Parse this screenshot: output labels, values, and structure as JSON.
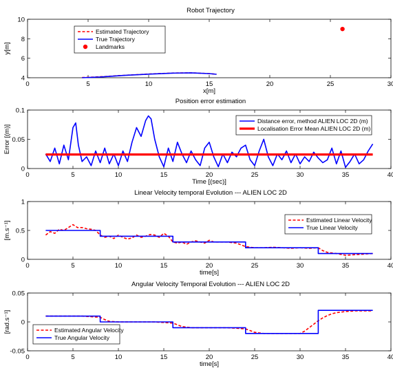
{
  "colors": {
    "red": "#ff0000",
    "blue": "#0000ff",
    "axis": "#000000"
  },
  "chart_data": [
    {
      "type": "line",
      "title": "Robot Trajectory",
      "xlabel": "x[m]",
      "ylabel": "y[m]",
      "xlim": [
        0,
        30
      ],
      "ylim": [
        4,
        10
      ],
      "xticks": [
        "0",
        "5",
        "10",
        "15",
        "20",
        "25",
        "30"
      ],
      "yticks": [
        "4",
        "6",
        "8",
        "10"
      ],
      "legend": {
        "position": "top-left",
        "entries": [
          "Estimated Trajectory",
          "True Trajectory",
          "Landmarks"
        ]
      },
      "series": [
        {
          "name": "Estimated Trajectory",
          "style": "dashed",
          "color": "#ff0000",
          "x": [
            4.5,
            6,
            8,
            10,
            12,
            13.5,
            15,
            15.6
          ],
          "y": [
            4.02,
            4.1,
            4.25,
            4.38,
            4.48,
            4.5,
            4.42,
            4.35
          ]
        },
        {
          "name": "True Trajectory",
          "style": "solid",
          "color": "#0000ff",
          "x": [
            4.5,
            6,
            8,
            10,
            12,
            13.5,
            15,
            15.6
          ],
          "y": [
            4.0,
            4.08,
            4.24,
            4.37,
            4.47,
            4.5,
            4.42,
            4.35
          ]
        },
        {
          "name": "Landmarks",
          "style": "marker",
          "color": "#ff0000",
          "x": [
            26
          ],
          "y": [
            9.0
          ]
        }
      ]
    },
    {
      "type": "line",
      "title": "Position error estimation",
      "xlabel": "Time [(sec)]",
      "ylabel": "Error [(m)]",
      "xlim": [
        0,
        40
      ],
      "ylim": [
        0,
        0.1
      ],
      "xticks": [
        "0",
        "5",
        "10",
        "15",
        "20",
        "25",
        "30",
        "35",
        "40"
      ],
      "yticks": [
        "0",
        "0.05",
        "0.1"
      ],
      "legend": {
        "position": "top-right",
        "entries": [
          "Distance error, method ALIEN LOC 2D (m)",
          "Localisation Error Mean ALIEN LOC 2D (m)"
        ]
      },
      "series": [
        {
          "name": "Distance error, method ALIEN LOC 2D (m)",
          "style": "solid",
          "color": "#0000ff",
          "x": [
            2,
            2.5,
            3,
            3.5,
            4,
            4.5,
            5,
            5.3,
            5.6,
            6,
            6.5,
            7,
            7.5,
            8,
            8.5,
            9,
            9.5,
            10,
            10.5,
            11,
            11.5,
            12,
            12.5,
            13,
            13.3,
            13.6,
            14,
            14.5,
            15,
            15.5,
            16,
            16.5,
            17,
            17.5,
            18,
            18.5,
            19,
            19.5,
            20,
            20.5,
            21,
            21.5,
            22,
            22.5,
            23,
            23.5,
            24,
            24.5,
            25,
            25.5,
            26,
            26.5,
            27,
            27.5,
            28,
            28.5,
            29,
            29.5,
            30,
            30.5,
            31,
            31.5,
            32,
            32.5,
            33,
            33.5,
            34,
            34.5,
            35,
            35.5,
            36,
            36.5,
            37,
            37.5,
            38
          ],
          "y": [
            0.025,
            0.012,
            0.035,
            0.008,
            0.04,
            0.015,
            0.07,
            0.078,
            0.04,
            0.012,
            0.02,
            0.005,
            0.03,
            0.01,
            0.035,
            0.008,
            0.025,
            0.005,
            0.03,
            0.012,
            0.045,
            0.07,
            0.055,
            0.082,
            0.09,
            0.085,
            0.05,
            0.02,
            0.003,
            0.035,
            0.012,
            0.045,
            0.025,
            0.01,
            0.03,
            0.015,
            0.005,
            0.035,
            0.045,
            0.02,
            0.003,
            0.025,
            0.01,
            0.028,
            0.02,
            0.035,
            0.04,
            0.015,
            0.005,
            0.03,
            0.05,
            0.02,
            0.005,
            0.025,
            0.015,
            0.03,
            0.01,
            0.025,
            0.008,
            0.02,
            0.012,
            0.028,
            0.018,
            0.01,
            0.015,
            0.035,
            0.008,
            0.03,
            0.002,
            0.012,
            0.025,
            0.008,
            0.015,
            0.03,
            0.042
          ]
        },
        {
          "name": "Localisation Error Mean ALIEN LOC 2D (m)",
          "style": "solid-thick",
          "color": "#ff0000",
          "x": [
            2,
            38
          ],
          "y": [
            0.024,
            0.024
          ]
        }
      ]
    },
    {
      "type": "line",
      "title": "Linear Velocity temporal Evolution --- ALIEN LOC 2D",
      "xlabel": "time[s]",
      "ylabel": "[m.s⁻¹]",
      "xlim": [
        0,
        40
      ],
      "ylim": [
        0,
        1
      ],
      "xticks": [
        "0",
        "5",
        "10",
        "15",
        "20",
        "25",
        "30",
        "35",
        "40"
      ],
      "yticks": [
        "0",
        "0.5",
        "1"
      ],
      "legend": {
        "position": "top-right",
        "entries": [
          "Estimated Linear Velocity",
          "True Linear Velocity"
        ]
      },
      "series": [
        {
          "name": "Estimated Linear Velocity",
          "style": "dashed",
          "color": "#ff0000",
          "x": [
            2,
            2.5,
            3,
            3.5,
            4,
            4.5,
            5,
            5.5,
            6,
            6.5,
            7,
            7.5,
            8,
            8.5,
            9,
            9.5,
            10,
            10.5,
            11,
            11.5,
            12,
            12.5,
            13,
            13.5,
            14,
            14.5,
            15,
            15.5,
            16,
            16.5,
            17,
            17.5,
            18,
            18.5,
            19,
            19.5,
            20,
            20.5,
            21,
            22,
            23,
            24,
            25,
            26,
            27,
            28,
            29,
            30,
            31,
            32,
            32.5,
            33,
            33.5,
            34,
            35,
            36,
            37,
            38
          ],
          "y": [
            0.42,
            0.48,
            0.45,
            0.52,
            0.5,
            0.55,
            0.6,
            0.55,
            0.55,
            0.53,
            0.52,
            0.5,
            0.42,
            0.38,
            0.4,
            0.36,
            0.42,
            0.38,
            0.35,
            0.37,
            0.42,
            0.38,
            0.4,
            0.43,
            0.42,
            0.38,
            0.45,
            0.4,
            0.3,
            0.28,
            0.3,
            0.26,
            0.3,
            0.32,
            0.3,
            0.28,
            0.33,
            0.3,
            0.3,
            0.3,
            0.28,
            0.22,
            0.2,
            0.2,
            0.21,
            0.2,
            0.19,
            0.2,
            0.19,
            0.2,
            0.15,
            0.12,
            0.11,
            0.1,
            0.07,
            0.08,
            0.09,
            0.1
          ]
        },
        {
          "name": "True Linear Velocity",
          "style": "solid",
          "color": "#0000ff",
          "x": [
            2,
            8,
            8,
            16,
            16,
            24,
            24,
            32,
            32,
            38
          ],
          "y": [
            0.5,
            0.5,
            0.4,
            0.4,
            0.3,
            0.3,
            0.2,
            0.2,
            0.1,
            0.1
          ]
        }
      ]
    },
    {
      "type": "line",
      "title": "Angular Velocity Temporal Evolution --- ALIEN LOC 2D",
      "xlabel": "time[s]",
      "ylabel": "[rad.s⁻¹]",
      "xlim": [
        0,
        40
      ],
      "ylim": [
        -0.05,
        0.05
      ],
      "xticks": [
        "0",
        "5",
        "10",
        "15",
        "20",
        "25",
        "30",
        "35",
        "40"
      ],
      "yticks": [
        "-0.05",
        "0",
        "0.05"
      ],
      "legend": {
        "position": "bottom-left",
        "entries": [
          "Estimated Angular Velocity",
          "True Angular Velocity"
        ]
      },
      "series": [
        {
          "name": "Estimated Angular Velocity",
          "style": "dashed",
          "color": "#ff0000",
          "x": [
            2,
            4,
            6,
            8,
            8.5,
            9,
            10,
            12,
            14,
            16,
            16.5,
            17,
            18,
            20,
            22,
            24,
            24.5,
            25,
            26,
            28,
            30,
            30.5,
            31,
            31.5,
            32,
            32.5,
            33,
            33.5,
            34,
            35,
            36,
            37,
            38
          ],
          "y": [
            0.01,
            0.01,
            0.01,
            0.008,
            0.004,
            0.001,
            0.0,
            0.0,
            0.0,
            -0.002,
            -0.005,
            -0.008,
            -0.01,
            -0.01,
            -0.01,
            -0.012,
            -0.015,
            -0.018,
            -0.02,
            -0.02,
            -0.02,
            -0.016,
            -0.01,
            -0.004,
            0.002,
            0.007,
            0.011,
            0.014,
            0.016,
            0.018,
            0.019,
            0.019,
            0.019
          ]
        },
        {
          "name": "True Angular Velocity",
          "style": "solid",
          "color": "#0000ff",
          "x": [
            2,
            8,
            8,
            16,
            16,
            24,
            24,
            32,
            32,
            38
          ],
          "y": [
            0.01,
            0.01,
            0.0,
            0.0,
            -0.01,
            -0.01,
            -0.02,
            -0.02,
            0.02,
            0.02
          ]
        }
      ]
    }
  ]
}
